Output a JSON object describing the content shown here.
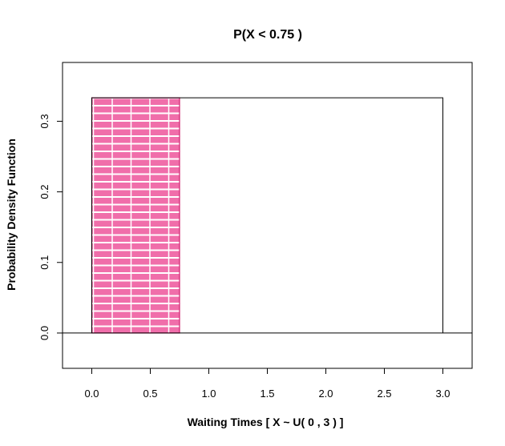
{
  "chart_data": {
    "type": "area",
    "title": "P(X < 0.75 )",
    "xlabel": "Waiting Times [ X ~ U( 0 , 3  ) ]",
    "ylabel": "Probability Density Function",
    "xlim": [
      -0.25,
      3.25
    ],
    "ylim": [
      -0.05,
      0.3833
    ],
    "x_ticks": [
      0,
      0.5,
      1,
      1.5,
      2,
      2.5,
      3
    ],
    "x_tick_labels": [
      "0.0",
      "0.5",
      "1.0",
      "1.5",
      "2.0",
      "2.5",
      "3.0"
    ],
    "y_ticks": [
      0,
      0.1,
      0.2,
      0.3
    ],
    "y_tick_labels": [
      "0.0",
      "0.1",
      "0.2",
      "0.3"
    ],
    "grid": false,
    "baseline": {
      "x": [
        -0.25,
        3.25
      ],
      "y": 0
    },
    "density": {
      "x": [
        0,
        0,
        3,
        3
      ],
      "y": [
        0,
        0.3333,
        0.3333,
        0
      ]
    },
    "shaded_region": {
      "x_from": 0,
      "x_to": 0.75,
      "height": 0.3333
    },
    "colors": {
      "shade": "#f06eaa",
      "outline": "#000000",
      "shade_border": "#d0206e"
    }
  }
}
